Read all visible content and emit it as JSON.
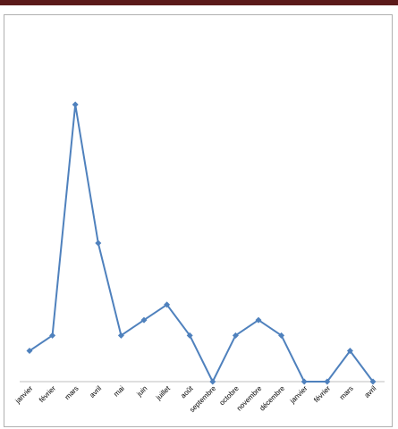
{
  "chart_data": {
    "type": "line",
    "categories": [
      "janvier",
      "février",
      "mars",
      "avril",
      "mai",
      "juin",
      "juillet",
      "août",
      "septembre",
      "octobre",
      "novembre",
      "décembre",
      "janvier",
      "février",
      "mars",
      "avril"
    ],
    "series": [
      {
        "values": [
          2,
          3,
          18,
          9,
          3,
          4,
          5,
          3,
          0,
          3,
          4,
          3,
          0,
          0,
          2,
          0
        ],
        "color": "#4f81bd",
        "marker": "diamond"
      }
    ],
    "title": "",
    "xlabel": "",
    "ylabel": "",
    "ylim": [
      0,
      24
    ],
    "grid": false,
    "legend": "none",
    "y_axis_visible": false
  },
  "colors": {
    "header_bar": "#5b1a1a",
    "frame_border": "#b0b0b0",
    "axis": "#bfbfbf"
  }
}
